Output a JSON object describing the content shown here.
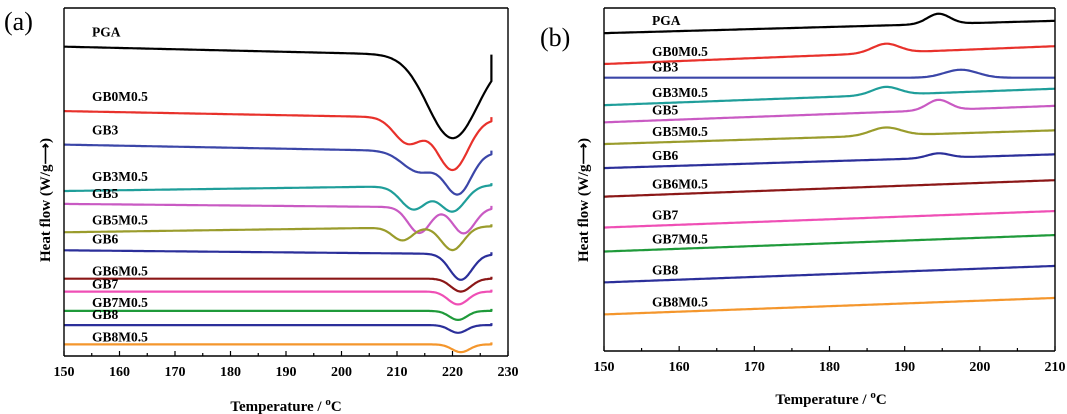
{
  "colors": {
    "black": "#000000",
    "red": "#e8312b",
    "blue": "#3b46a8",
    "teal": "#1f9e9a",
    "magenta": "#c95ac3",
    "olive": "#9a9c2c",
    "navy": "#2b2f9a",
    "maroon": "#8b1717",
    "pink": "#ef4fb5",
    "green": "#1f9a3a",
    "orange": "#f4962c"
  },
  "chart_data": [
    {
      "type": "line",
      "panel_label": "(a)",
      "xlabel": "Temperature / ",
      "xlabel_unit_sup": "o",
      "xlabel_unit": "C",
      "ylabel": "Heat flow (W/g",
      "ylabel_arrow": "⟶",
      "ylabel_end": ")",
      "xlim": [
        150,
        230
      ],
      "x_ticks": [
        "150",
        "160",
        "170",
        "180",
        "190",
        "200",
        "210",
        "220",
        "230"
      ],
      "x_tick_values": [
        150,
        160,
        170,
        180,
        190,
        200,
        210,
        220,
        230
      ],
      "series": [
        {
          "name": "PGA",
          "color": "#000000",
          "baseline": 12.0,
          "slope": -0.005,
          "x_end": 227,
          "peaks": [
            {
              "t": 220,
              "depth": 3.2,
              "w": 4.5
            }
          ],
          "end_rise": 0.0
        },
        {
          "name": "GB0M0.5",
          "color": "#e8312b",
          "baseline": 9.5,
          "slope": -0.004,
          "x_end": 227,
          "peaks": [
            {
              "t": 212,
              "depth": 1.0,
              "w": 2.5
            },
            {
              "t": 220,
              "depth": 2.0,
              "w": 2.8
            }
          ],
          "end_rise": 0.0
        },
        {
          "name": "GB3",
          "color": "#3b46a8",
          "baseline": 8.2,
          "slope": -0.004,
          "x_end": 227,
          "peaks": [
            {
              "t": 214,
              "depth": 0.8,
              "w": 3.0
            },
            {
              "t": 221,
              "depth": 1.6,
              "w": 2.4
            }
          ],
          "end_rise": 0.0
        },
        {
          "name": "GB3M0.5",
          "color": "#1f9e9a",
          "baseline": 6.4,
          "slope": 0.003,
          "x_end": 227,
          "peaks": [
            {
              "t": 213,
              "depth": 0.9,
              "w": 2.3
            },
            {
              "t": 220,
              "depth": 1.0,
              "w": 2.3
            }
          ],
          "end_rise": 0.0
        },
        {
          "name": "GB5",
          "color": "#c95ac3",
          "baseline": 5.9,
          "slope": -0.002,
          "x_end": 227,
          "peaks": [
            {
              "t": 214,
              "depth": 1.0,
              "w": 2.0
            },
            {
              "t": 222,
              "depth": 1.0,
              "w": 2.0
            }
          ],
          "end_rise": 0.0
        },
        {
          "name": "GB5M0.5",
          "color": "#9a9c2c",
          "baseline": 4.8,
          "slope": 0.003,
          "x_end": 227,
          "peaks": [
            {
              "t": 211,
              "depth": 0.5,
              "w": 1.8
            },
            {
              "t": 220,
              "depth": 0.9,
              "w": 2.0
            }
          ],
          "end_rise": 0.0
        },
        {
          "name": "GB6",
          "color": "#2b2f9a",
          "baseline": 4.1,
          "slope": -0.002,
          "x_end": 227,
          "peaks": [
            {
              "t": 221.5,
              "depth": 1.0,
              "w": 2.0
            }
          ],
          "end_rise": 0.0
        },
        {
          "name": "GB6M0.5",
          "color": "#8b1717",
          "baseline": 3.0,
          "slope": 0.0,
          "x_end": 227,
          "peaks": [
            {
              "t": 221.5,
              "depth": 0.5,
              "w": 1.8
            }
          ],
          "end_rise": 0.0
        },
        {
          "name": "GB7",
          "color": "#ef4fb5",
          "baseline": 2.5,
          "slope": 0.0,
          "x_end": 227,
          "peaks": [
            {
              "t": 221,
              "depth": 0.5,
              "w": 1.8
            }
          ],
          "end_rise": 0.0
        },
        {
          "name": "GB7M0.5",
          "color": "#1f9a3a",
          "baseline": 1.75,
          "slope": 0.0,
          "x_end": 227,
          "peaks": [
            {
              "t": 221,
              "depth": 0.35,
              "w": 1.6
            }
          ],
          "end_rise": 0.0
        },
        {
          "name": "GB8",
          "color": "#2b2f9a",
          "baseline": 1.2,
          "slope": 0.0,
          "x_end": 227,
          "peaks": [
            {
              "t": 221,
              "depth": 0.3,
              "w": 1.6
            }
          ],
          "end_rise": 0.0
        },
        {
          "name": "GB8M0.5",
          "color": "#f4962c",
          "baseline": 0.45,
          "slope": 0.0,
          "x_end": 227,
          "peaks": [
            {
              "t": 221.5,
              "depth": 0.3,
              "w": 1.6
            }
          ],
          "end_rise": 0.0
        }
      ]
    },
    {
      "type": "line",
      "panel_label": "(b)",
      "xlabel": "Temperature / ",
      "xlabel_unit_sup": "o",
      "xlabel_unit": "C",
      "ylabel": "Heat flow (W/g",
      "ylabel_arrow": "⟶",
      "ylabel_end": ")",
      "xlim": [
        150,
        210
      ],
      "x_ticks": [
        "150",
        "160",
        "170",
        "180",
        "190",
        "200",
        "210"
      ],
      "x_tick_values": [
        150,
        160,
        170,
        180,
        190,
        200,
        210
      ],
      "series": [
        {
          "name": "PGA",
          "color": "#000000",
          "baseline": 13.9,
          "slope": 0.009,
          "peaks": [
            {
              "t": 194.5,
              "height": 0.45,
              "w": 1.5
            }
          ]
        },
        {
          "name": "GB0M0.5",
          "color": "#e8312b",
          "baseline": 12.55,
          "slope": 0.013,
          "peaks": [
            {
              "t": 187.5,
              "height": 0.4,
              "w": 1.8
            }
          ]
        },
        {
          "name": "GB3",
          "color": "#3b46a8",
          "baseline": 11.95,
          "slope": 0.0,
          "peaks": [
            {
              "t": 197.5,
              "height": 0.35,
              "w": 2.2
            }
          ]
        },
        {
          "name": "GB3M0.5",
          "color": "#1f9e9a",
          "baseline": 10.75,
          "slope": 0.012,
          "peaks": [
            {
              "t": 187.5,
              "height": 0.35,
              "w": 1.8
            }
          ]
        },
        {
          "name": "GB5",
          "color": "#c95ac3",
          "baseline": 10.0,
          "slope": 0.012,
          "peaks": [
            {
              "t": 194.5,
              "height": 0.45,
              "w": 1.5
            }
          ]
        },
        {
          "name": "GB5M0.5",
          "color": "#9a9c2c",
          "baseline": 9.05,
          "slope": 0.01,
          "peaks": [
            {
              "t": 187.5,
              "height": 0.35,
              "w": 2.0
            }
          ]
        },
        {
          "name": "GB6",
          "color": "#2b2f9a",
          "baseline": 8.0,
          "slope": 0.01,
          "peaks": [
            {
              "t": 194.5,
              "height": 0.2,
              "w": 1.5
            }
          ]
        },
        {
          "name": "GB6M0.5",
          "color": "#8b1717",
          "baseline": 6.75,
          "slope": 0.012,
          "peaks": []
        },
        {
          "name": "GB7",
          "color": "#ef4fb5",
          "baseline": 5.4,
          "slope": 0.012,
          "peaks": []
        },
        {
          "name": "GB7M0.5",
          "color": "#1f9a3a",
          "baseline": 4.35,
          "slope": 0.012,
          "peaks": []
        },
        {
          "name": "GB8",
          "color": "#2b2f9a",
          "baseline": 3.0,
          "slope": 0.012,
          "peaks": []
        },
        {
          "name": "GB8M0.5",
          "color": "#f4962c",
          "baseline": 1.6,
          "slope": 0.012,
          "peaks": []
        }
      ]
    }
  ]
}
